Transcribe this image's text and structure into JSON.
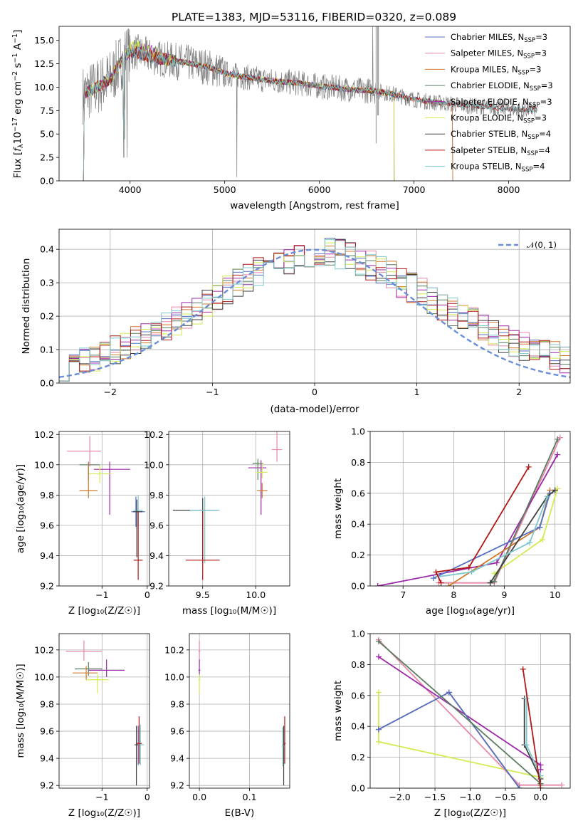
{
  "title": "PLATE=1383, MJD=53116, FIBERID=0320, z=0.089",
  "colors": {
    "Chabrier MILES": "#5470c6",
    "Salpeter MILES": "#e888a8",
    "Kroupa MILES": "#d07a2c",
    "Chabrier ELODIE": "#5a7d60",
    "Salpeter ELODIE": "#9c2aa8",
    "Kroupa ELODIE": "#d2ec50",
    "Chabrier STELIB": "#404040",
    "Salpeter STELIB": "#b01818",
    "Kroupa STELIB": "#7cc8cc",
    "data": "#808080",
    "normal": "#6a8fd8"
  },
  "chart_data": [
    {
      "type": "line",
      "title": "PLATE=1383, MJD=53116, FIBERID=0320, z=0.089",
      "xlabel": "wavelength [Angstrom, rest frame]",
      "ylabel": "Flux [f_λ 10^-17 erg cm^-2 s^-1 A^-1]",
      "xlim": [
        3250,
        8650
      ],
      "ylim": [
        0,
        16.5
      ],
      "xticks": [
        "4000",
        "5000",
        "6000",
        "7000",
        "8000"
      ],
      "yticks": [
        "0.0",
        "2.5",
        "5.0",
        "7.5",
        "10.0",
        "12.5",
        "15.0"
      ],
      "legend_position": "top-right",
      "legend": [
        {
          "text": "Chabrier MILES, N",
          "sub": "SSP",
          "suffix": "=3"
        },
        {
          "text": "Salpeter MILES, N",
          "sub": "SSP",
          "suffix": "=3"
        },
        {
          "text": "Kroupa MILES, N",
          "sub": "SSP",
          "suffix": "=3"
        },
        {
          "text": "Chabrier ELODIE, N",
          "sub": "SSP",
          "suffix": "=3"
        },
        {
          "text": "Salpeter ELODIE, N",
          "sub": "SSP",
          "suffix": "=3"
        },
        {
          "text": "Kroupa ELODIE, N",
          "sub": "SSP",
          "suffix": "=3"
        },
        {
          "text": "Chabrier STELIB, N",
          "sub": "SSP",
          "suffix": "=4"
        },
        {
          "text": "Salpeter STELIB, N",
          "sub": "SSP",
          "suffix": "=4"
        },
        {
          "text": "Kroupa STELIB, N",
          "sub": "SSP",
          "suffix": "=4"
        }
      ],
      "continuum": {
        "x": [
          3500,
          3650,
          3800,
          3950,
          4050,
          4200,
          4400,
          4600,
          4800,
          4900,
          5000,
          5200,
          5400,
          5600,
          5800,
          6000,
          6200,
          6400,
          6600,
          6800,
          7000,
          7200,
          7400,
          7600,
          7800,
          8000,
          8200
        ],
        "y": [
          9.2,
          10.0,
          11.0,
          13.5,
          13.8,
          13.3,
          12.9,
          12.6,
          12.2,
          11.9,
          11.5,
          11.1,
          10.8,
          10.6,
          10.4,
          10.1,
          9.9,
          9.7,
          9.6,
          9.2,
          8.7,
          8.4,
          8.2,
          8.0,
          7.9,
          7.7,
          7.6
        ]
      }
    },
    {
      "type": "step",
      "xlabel": "(data-model)/error",
      "ylabel": "Normed distribution",
      "xlim": [
        -2.5,
        2.5
      ],
      "ylim": [
        0,
        0.46
      ],
      "xticks": [
        "−2",
        "−1",
        "0",
        "1",
        "2"
      ],
      "yticks": [
        "0.0",
        "0.1",
        "0.2",
        "0.3",
        "0.4"
      ],
      "grid": true,
      "legend_position": "top-right",
      "legend": "𝒩(0, 1)",
      "bin_width": 0.1,
      "base": [
        0.05,
        0.06,
        0.07,
        0.08,
        0.09,
        0.1,
        0.11,
        0.125,
        0.14,
        0.155,
        0.17,
        0.185,
        0.2,
        0.22,
        0.24,
        0.26,
        0.28,
        0.3,
        0.315,
        0.33,
        0.345,
        0.355,
        0.365,
        0.375,
        0.385,
        0.39,
        0.39,
        0.385,
        0.375,
        0.365,
        0.35,
        0.335,
        0.32,
        0.3,
        0.285,
        0.27,
        0.25,
        0.23,
        0.21,
        0.195,
        0.18,
        0.165,
        0.15,
        0.135,
        0.12,
        0.11,
        0.1,
        0.09,
        0.08,
        0.07
      ]
    },
    {
      "type": "errorbar",
      "xlabel": "Z [log₁₀(Z/Z☉)]",
      "ylabel": "age  [log₁₀(age/yr)]",
      "xlim": [
        -1.95,
        0.05
      ],
      "ylim": [
        9.2,
        10.22
      ],
      "xticks": [
        "−1",
        "0"
      ],
      "yticks": [
        "9.2",
        "9.4",
        "9.6",
        "9.8",
        "10.0",
        "10.2"
      ],
      "grid": true,
      "points": [
        {
          "c": "Salpeter MILES",
          "x": -1.27,
          "y": 10.09,
          "xe": [
            0.5,
            0.25
          ],
          "ye": [
            0.1,
            0.1
          ]
        },
        {
          "c": "Salpeter ELODIE",
          "x": -0.83,
          "y": 9.97,
          "xe": [
            0.35,
            0.45
          ],
          "ye": [
            0.3,
            0.05
          ]
        },
        {
          "c": "Kroupa ELODIE",
          "x": -1.05,
          "y": 9.94,
          "xe": [
            0.25,
            0.25
          ],
          "ye": [
            0.06,
            0.06
          ]
        },
        {
          "c": "Chabrier ELODIE",
          "x": -1.3,
          "y": 10.0,
          "xe": [
            0.2,
            0.25
          ],
          "ye": [
            0.1,
            0.02
          ]
        },
        {
          "c": "Kroupa MILES",
          "x": -1.3,
          "y": 9.83,
          "xe": [
            0.2,
            0.2
          ],
          "ye": [
            0.05,
            0.18
          ]
        },
        {
          "c": "Chabrier MILES",
          "x": -0.25,
          "y": 9.69,
          "xe": [
            0.1,
            0.2
          ],
          "ye": [
            0.1,
            0.1
          ]
        },
        {
          "c": "Kroupa STELIB",
          "x": -0.2,
          "y": 9.7,
          "xe": [
            0.1,
            0.1
          ],
          "ye": [
            0.1,
            0.1
          ]
        },
        {
          "c": "Chabrier STELIB",
          "x": -0.23,
          "y": 9.69,
          "xe": [
            0.08,
            0.12
          ],
          "ye": [
            0.3,
            0.08
          ]
        },
        {
          "c": "Salpeter STELIB",
          "x": -0.2,
          "y": 9.37,
          "xe": [
            0.1,
            0.1
          ],
          "ye": [
            0.13,
            0.32
          ]
        }
      ]
    },
    {
      "type": "errorbar",
      "xlabel": "mass [log₁₀(M/M☉)]",
      "xlim": [
        9.18,
        10.32
      ],
      "ylim": [
        9.2,
        10.22
      ],
      "xticks": [
        "9.5",
        "10.0"
      ],
      "yticks": [
        "9.2",
        "9.4",
        "9.6",
        "9.8",
        "10.0",
        "10.2"
      ],
      "grid": true,
      "points": [
        {
          "c": "Salpeter MILES",
          "x": 10.2,
          "y": 10.1,
          "xe": [
            0.05,
            0.05
          ],
          "ye": [
            0.08,
            0.12
          ]
        },
        {
          "c": "Salpeter ELODIE",
          "x": 10.05,
          "y": 9.98,
          "xe": [
            0.12,
            0.05
          ],
          "ye": [
            0.31,
            0.05
          ]
        },
        {
          "c": "Chabrier ELODIE",
          "x": 10.02,
          "y": 10.01,
          "xe": [
            0.05,
            0.05
          ],
          "ye": [
            0.11,
            0.03
          ]
        },
        {
          "c": "Kroupa ELODIE",
          "x": 10.06,
          "y": 9.95,
          "xe": [
            0.05,
            0.05
          ],
          "ye": [
            0.04,
            0.06
          ]
        },
        {
          "c": "Kroupa MILES",
          "x": 10.06,
          "y": 9.83,
          "xe": [
            0.05,
            0.05
          ],
          "ye": [
            0.05,
            0.05
          ]
        },
        {
          "c": "Chabrier STELIB",
          "x": 9.5,
          "y": 9.7,
          "xe": [
            0.28,
            0.14
          ],
          "ye": [
            0.35,
            0.08
          ]
        },
        {
          "c": "Kroupa STELIB",
          "x": 9.52,
          "y": 9.7,
          "xe": [
            0.14,
            0.14
          ],
          "ye": [
            0.35,
            0.09
          ]
        },
        {
          "c": "Salpeter STELIB",
          "x": 9.5,
          "y": 9.37,
          "xe": [
            0.16,
            0.16
          ],
          "ye": [
            0.13,
            0.32
          ]
        }
      ]
    },
    {
      "type": "line",
      "xlabel": "age  [log₁₀(age/yr)]",
      "ylabel": "mass weight",
      "xlim": [
        6.35,
        10.3
      ],
      "ylim": [
        0,
        1
      ],
      "xticks": [
        "7",
        "8",
        "9",
        "10"
      ],
      "yticks": [
        "0.0",
        "0.2",
        "0.4",
        "0.6",
        "0.8",
        "1.0"
      ],
      "grid": true,
      "series": [
        {
          "c": "Kroupa ELODIE",
          "x": [
            8.8,
            9.75,
            10.05
          ],
          "y": [
            0.08,
            0.3,
            0.63
          ]
        },
        {
          "c": "Salpeter MILES",
          "x": [
            7.7,
            8.8,
            10.1
          ],
          "y": [
            0.02,
            0.02,
            0.96
          ]
        },
        {
          "c": "Salpeter ELODIE",
          "x": [
            6.5,
            8.85,
            10.05
          ],
          "y": [
            0.0,
            0.15,
            0.85
          ]
        },
        {
          "c": "Kroupa MILES",
          "x": [
            7.9,
            9.7,
            9.9
          ],
          "y": [
            0.0,
            0.38,
            0.62
          ]
        },
        {
          "c": "Chabrier MILES",
          "x": [
            7.6,
            9.7,
            9.9
          ],
          "y": [
            0.05,
            0.38,
            0.6
          ]
        },
        {
          "c": "Chabrier ELODIE",
          "x": [
            8.72,
            8.8,
            10.05
          ],
          "y": [
            0.02,
            0.03,
            0.95
          ]
        },
        {
          "c": "Chabrier STELIB",
          "x": [
            8.72,
            9.85,
            10.0
          ],
          "y": [
            0.02,
            0.58,
            0.62
          ]
        },
        {
          "c": "Kroupa STELIB",
          "x": [
            7.7,
            8.35,
            9.5,
            9.85
          ],
          "y": [
            0.06,
            0.09,
            0.28,
            0.58
          ]
        },
        {
          "c": "Salpeter STELIB",
          "x": [
            7.75,
            7.65,
            8.3,
            9.48
          ],
          "y": [
            0.02,
            0.09,
            0.12,
            0.77
          ]
        }
      ]
    },
    {
      "type": "errorbar",
      "xlabel": "Z [log₁₀(Z/Z☉)]",
      "ylabel": "mass [log₁₀(M/M☉)]",
      "xlim": [
        -1.95,
        0.05
      ],
      "ylim": [
        9.18,
        10.32
      ],
      "xticks": [
        "−1",
        "0"
      ],
      "yticks": [
        "9.2",
        "9.4",
        "9.6",
        "9.8",
        "10.0",
        "10.2"
      ],
      "grid": true,
      "points": [
        {
          "c": "Salpeter MILES",
          "x": -1.4,
          "y": 10.19,
          "xe": [
            0.4,
            0.4
          ],
          "ye": [
            0.07,
            0.08
          ]
        },
        {
          "c": "Salpeter ELODIE",
          "x": -0.9,
          "y": 10.05,
          "xe": [
            0.4,
            0.4
          ],
          "ye": [
            0.05,
            0.08
          ]
        },
        {
          "c": "Chabrier ELODIE",
          "x": -1.3,
          "y": 10.06,
          "xe": [
            0.3,
            0.3
          ],
          "ye": [
            0.05,
            0.05
          ]
        },
        {
          "c": "Kroupa MILES",
          "x": -1.35,
          "y": 10.03,
          "xe": [
            0.3,
            0.25
          ],
          "ye": [
            0.05,
            0.05
          ]
        },
        {
          "c": "Kroupa ELODIE",
          "x": -1.1,
          "y": 9.98,
          "xe": [
            0.25,
            0.25
          ],
          "ye": [
            0.1,
            0.04
          ]
        },
        {
          "c": "Chabrier MILES",
          "x": -0.2,
          "y": 9.5,
          "xe": [
            0.05,
            0.05
          ],
          "ye": [
            0.15,
            0.14
          ]
        },
        {
          "c": "Kroupa STELIB",
          "x": -0.15,
          "y": 9.5,
          "xe": [
            0.05,
            0.08
          ],
          "ye": [
            0.15,
            0.15
          ]
        },
        {
          "c": "Chabrier STELIB",
          "x": -0.24,
          "y": 9.5,
          "xe": [
            0.04,
            0.04
          ],
          "ye": [
            0.3,
            0.14
          ]
        },
        {
          "c": "Salpeter STELIB",
          "x": -0.18,
          "y": 9.51,
          "xe": [
            0.06,
            0.06
          ],
          "ye": [
            0.15,
            0.2
          ]
        }
      ]
    },
    {
      "type": "errorbar",
      "xlabel": "E(B-V)",
      "xlim": [
        -0.02,
        0.18
      ],
      "ylim": [
        9.18,
        10.32
      ],
      "xticks": [
        "0.0",
        "0.1"
      ],
      "yticks": [
        "9.2",
        "9.4",
        "9.6",
        "9.8",
        "10.0",
        "10.2"
      ],
      "grid": true,
      "points": [
        {
          "c": "Salpeter MILES",
          "x": 0.0,
          "y": 10.19,
          "xe": [
            0.002,
            0.002
          ],
          "ye": [
            0.08,
            0.08
          ]
        },
        {
          "c": "Salpeter ELODIE",
          "x": 0.0,
          "y": 10.05,
          "xe": [
            0.002,
            0.002
          ],
          "ye": [
            0.06,
            0.08
          ]
        },
        {
          "c": "Kroupa ELODIE",
          "x": 0.0,
          "y": 9.98,
          "xe": [
            0.002,
            0.002
          ],
          "ye": [
            0.1,
            0.04
          ]
        },
        {
          "c": "Chabrier STELIB",
          "x": 0.168,
          "y": 9.5,
          "xe": [
            0.002,
            0.002
          ],
          "ye": [
            0.3,
            0.14
          ]
        },
        {
          "c": "Salpeter STELIB",
          "x": 0.17,
          "y": 9.51,
          "xe": [
            0.002,
            0.002
          ],
          "ye": [
            0.15,
            0.2
          ]
        },
        {
          "c": "Kroupa STELIB",
          "x": 0.166,
          "y": 9.49,
          "xe": [
            0.002,
            0.002
          ],
          "ye": [
            0.15,
            0.14
          ]
        }
      ]
    },
    {
      "type": "line",
      "xlabel": "Z [log₁₀(Z/Z☉)]",
      "ylabel": "mass weight",
      "xlim": [
        -2.42,
        0.42
      ],
      "ylim": [
        0,
        1
      ],
      "xticks": [
        "−2.0",
        "−1.5",
        "−1.0",
        "−0.5",
        "0.0"
      ],
      "yticks": [
        "0.0",
        "0.2",
        "0.4",
        "0.6",
        "0.8",
        "1.0"
      ],
      "grid": true,
      "series": [
        {
          "c": "Kroupa ELODIE",
          "x": [
            -2.3,
            -2.3,
            0.0
          ],
          "y": [
            0.62,
            0.3,
            0.07
          ]
        },
        {
          "c": "Salpeter MILES",
          "x": [
            -2.3,
            -0.3,
            0.3
          ],
          "y": [
            0.96,
            0.02,
            0.02
          ]
        },
        {
          "c": "Salpeter ELODIE",
          "x": [
            -2.3,
            0.0,
            0.0
          ],
          "y": [
            0.85,
            0.15,
            0.12
          ]
        },
        {
          "c": "Kroupa MILES",
          "x": [
            -2.3,
            -1.3,
            -0.3
          ],
          "y": [
            0.38,
            0.62,
            0.0
          ]
        },
        {
          "c": "Chabrier MILES",
          "x": [
            -2.3,
            -1.3,
            -0.3
          ],
          "y": [
            0.38,
            0.62,
            0.0
          ]
        },
        {
          "c": "Chabrier ELODIE",
          "x": [
            -2.3,
            0.0,
            0.0
          ],
          "y": [
            0.95,
            0.03,
            0.02
          ]
        },
        {
          "c": "Chabrier STELIB",
          "x": [
            -0.23,
            -0.23,
            0.0
          ],
          "y": [
            0.58,
            0.28,
            0.06
          ]
        },
        {
          "c": "Kroupa STELIB",
          "x": [
            -0.2,
            -0.2,
            0.0
          ],
          "y": [
            0.58,
            0.28,
            0.08
          ]
        },
        {
          "c": "Salpeter STELIB",
          "x": [
            -0.25,
            0.0
          ],
          "y": [
            0.77,
            0.0
          ]
        }
      ]
    }
  ]
}
